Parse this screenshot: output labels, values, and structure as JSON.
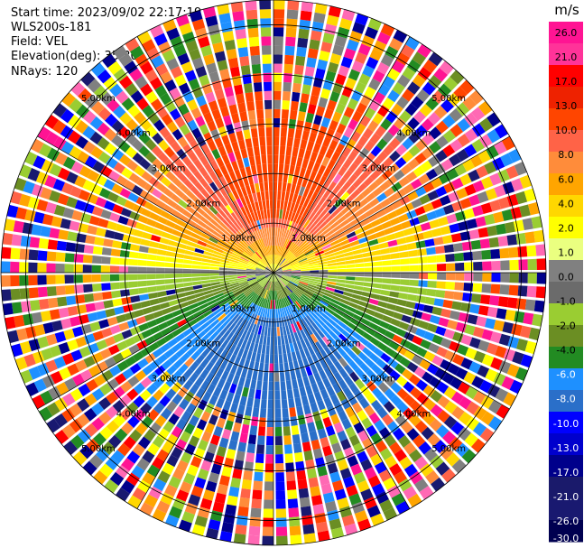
{
  "header": {
    "start_time": "Start time: 2023/09/02 22:17:19",
    "instrument": "WLS200s-181",
    "field": "Field: VEL",
    "elevation": "Elevation(deg): 35.30",
    "nrays": "NRays: 120"
  },
  "chart_data": {
    "type": "heatmap",
    "projection": "polar-ppi",
    "rays": 120,
    "gates": 30,
    "max_range_km": 5.5,
    "range_ring_labels": [
      "1.00km",
      "2.00km",
      "3.00km",
      "4.00km",
      "5.00km"
    ],
    "colorbar": {
      "title": "m/s",
      "ticks": [
        "26.0",
        "21.0",
        "17.0",
        "13.0",
        "10.0",
        "8.0",
        "6.0",
        "4.0",
        "2.0",
        "1.0",
        "0.0",
        "-1.0",
        "-2.0",
        "-4.0",
        "-6.0",
        "-8.0",
        "-10.0",
        "-13.0",
        "-17.0",
        "-21.0",
        "-26.0",
        "-30.0"
      ],
      "colors": [
        "#ff1493",
        "#ff3399",
        "#ff0000",
        "#ee2200",
        "#ff4500",
        "#ff6347",
        "#ff8c3a",
        "#ffa500",
        "#ffd700",
        "#ffff00",
        "#eaff80",
        "#808080",
        "#6b6b6b",
        "#9acd32",
        "#6b8e23",
        "#228b22",
        "#1e90ff",
        "#2a6fc9",
        "#0000ff",
        "#0000cd",
        "#00008b",
        "#1a1a6b",
        "#191970",
        "#000050"
      ]
    }
  }
}
